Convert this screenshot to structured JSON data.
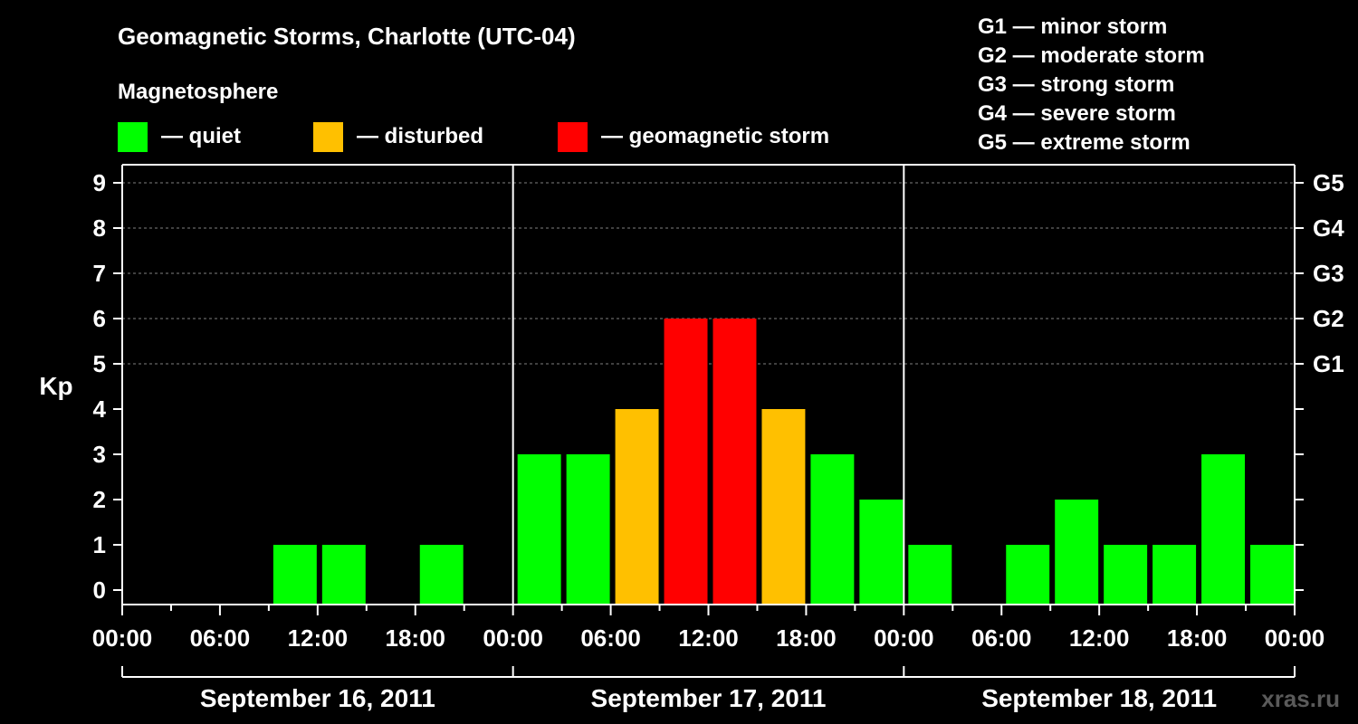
{
  "chart_data": {
    "type": "bar",
    "title": "Geomagnetic Storms, Charlotte (UTC-04)",
    "legend_title": "Magnetosphere",
    "legend": [
      {
        "label": "— quiet",
        "color": "#00ff00"
      },
      {
        "label": "— disturbed",
        "color": "#ffc000"
      },
      {
        "label": "— geomagnetic storm",
        "color": "#ff0000"
      }
    ],
    "storm_scale": [
      "G1 — minor storm",
      "G2 — moderate storm",
      "G3 — strong storm",
      "G4 — severe storm",
      "G5 — extreme storm"
    ],
    "ylabel": "Kp",
    "ylim": [
      0,
      9
    ],
    "yticks": [
      "0",
      "1",
      "2",
      "3",
      "4",
      "5",
      "6",
      "7",
      "8",
      "9"
    ],
    "right_ticks": [
      {
        "kp": 5,
        "label": "G1"
      },
      {
        "kp": 6,
        "label": "G2"
      },
      {
        "kp": 7,
        "label": "G3"
      },
      {
        "kp": 8,
        "label": "G4"
      },
      {
        "kp": 9,
        "label": "G5"
      }
    ],
    "xticks": [
      "00:00",
      "06:00",
      "12:00",
      "18:00",
      "00:00",
      "06:00",
      "12:00",
      "18:00",
      "00:00",
      "06:00",
      "12:00",
      "18:00",
      "00:00"
    ],
    "days": [
      "September 16, 2011",
      "September 17, 2011",
      "September 18, 2011"
    ],
    "x": [
      "00:00",
      "03:00",
      "06:00",
      "09:00",
      "12:00",
      "15:00",
      "18:00",
      "21:00",
      "00:00",
      "03:00",
      "06:00",
      "09:00",
      "12:00",
      "15:00",
      "18:00",
      "21:00",
      "00:00",
      "03:00",
      "06:00",
      "09:00",
      "12:00",
      "15:00",
      "18:00",
      "21:00"
    ],
    "values": [
      0,
      0,
      0,
      1,
      1,
      0,
      1,
      0,
      3,
      3,
      4,
      6,
      6,
      4,
      3,
      2,
      1,
      0,
      1,
      2,
      1,
      1,
      3,
      1
    ],
    "colors": {
      "quiet": "#00ff00",
      "disturbed": "#ffc000",
      "storm": "#ff0000"
    },
    "grid": true,
    "watermark": "xras.ru"
  }
}
